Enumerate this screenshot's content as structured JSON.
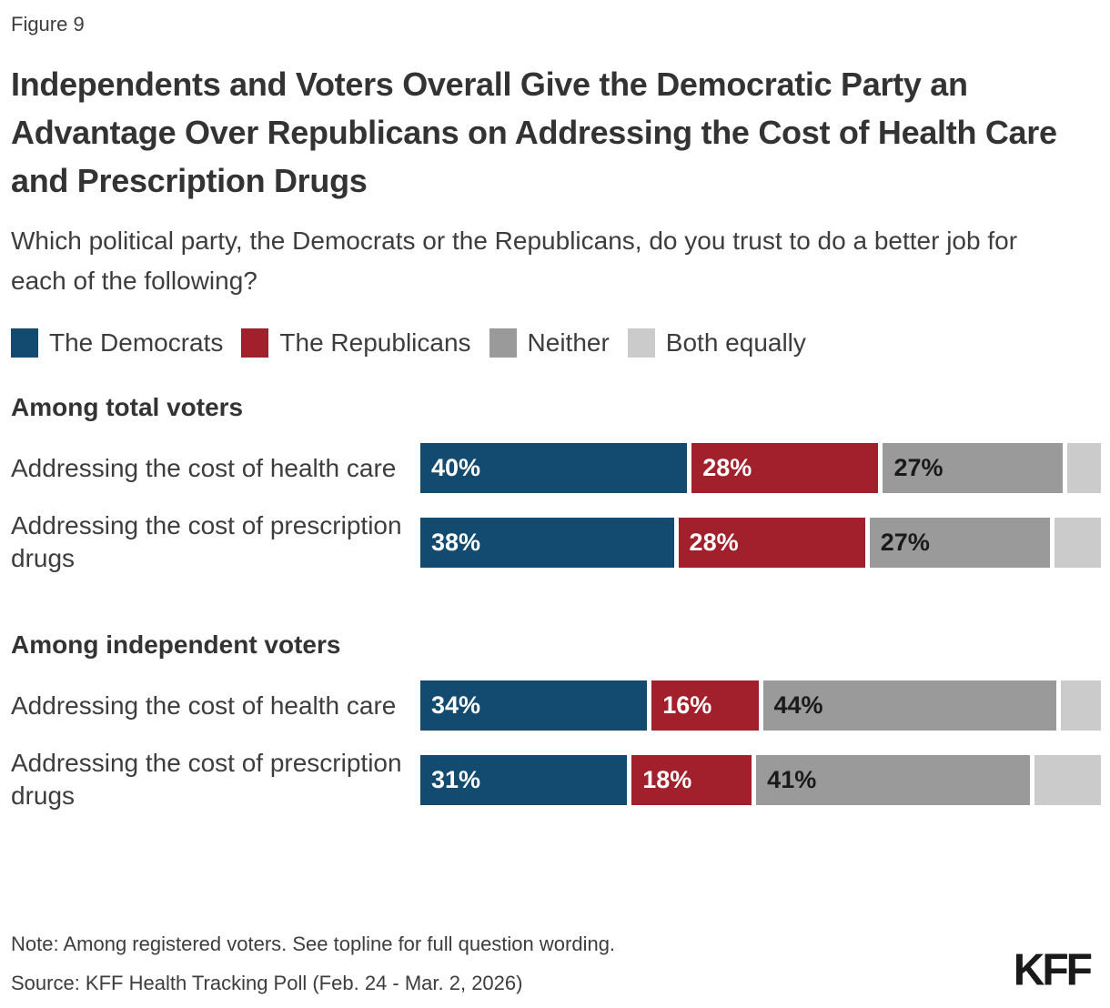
{
  "figure_label": "Figure 9",
  "title": "Independents and Voters Overall Give the Democratic Party an Advantage Over Republicans on Addressing the Cost of Health Care and Prescription Drugs",
  "subtitle": "Which political party, the Democrats or the Republicans, do you trust to do a better job for each of the following?",
  "legend": [
    {
      "label": "The Democrats",
      "color": "#134A6F"
    },
    {
      "label": "The Republicans",
      "color": "#A1202C"
    },
    {
      "label": "Neither",
      "color": "#9A9A9A"
    },
    {
      "label": "Both equally",
      "color": "#CBCBCB"
    }
  ],
  "chart_data": {
    "type": "bar",
    "orientation": "horizontal",
    "stacked": true,
    "unit": "%",
    "x_range": [
      0,
      100
    ],
    "grid": false,
    "legend_position": "top",
    "series_names": [
      "The Democrats",
      "The Republicans",
      "Neither",
      "Both equally"
    ],
    "colors": [
      "#134A6F",
      "#A1202C",
      "#9A9A9A",
      "#CBCBCB"
    ],
    "value_label_colors": [
      "#FFFFFF",
      "#FFFFFF",
      "#1A1A1A",
      "#1A1A1A"
    ],
    "groups": [
      {
        "heading": "Among total voters",
        "rows": [
          {
            "label": "Addressing the cost of health care",
            "values": [
              40,
              28,
              27,
              5
            ],
            "display_labels": [
              "40%",
              "28%",
              "27%",
              ""
            ]
          },
          {
            "label": "Addressing the cost of prescription drugs",
            "values": [
              38,
              28,
              27,
              7
            ],
            "display_labels": [
              "38%",
              "28%",
              "27%",
              ""
            ]
          }
        ]
      },
      {
        "heading": "Among independent voters",
        "rows": [
          {
            "label": "Addressing the cost of health care",
            "values": [
              34,
              16,
              44,
              6
            ],
            "display_labels": [
              "34%",
              "16%",
              "44%",
              ""
            ]
          },
          {
            "label": "Addressing the cost of prescription drugs",
            "values": [
              31,
              18,
              41,
              10
            ],
            "display_labels": [
              "31%",
              "18%",
              "41%",
              ""
            ]
          }
        ]
      }
    ]
  },
  "note": "Note: Among registered voters. See topline for full question wording.",
  "source": "Source: KFF Health Tracking Poll (Feb. 24 - Mar. 2, 2026)",
  "logo_text": "KFF"
}
